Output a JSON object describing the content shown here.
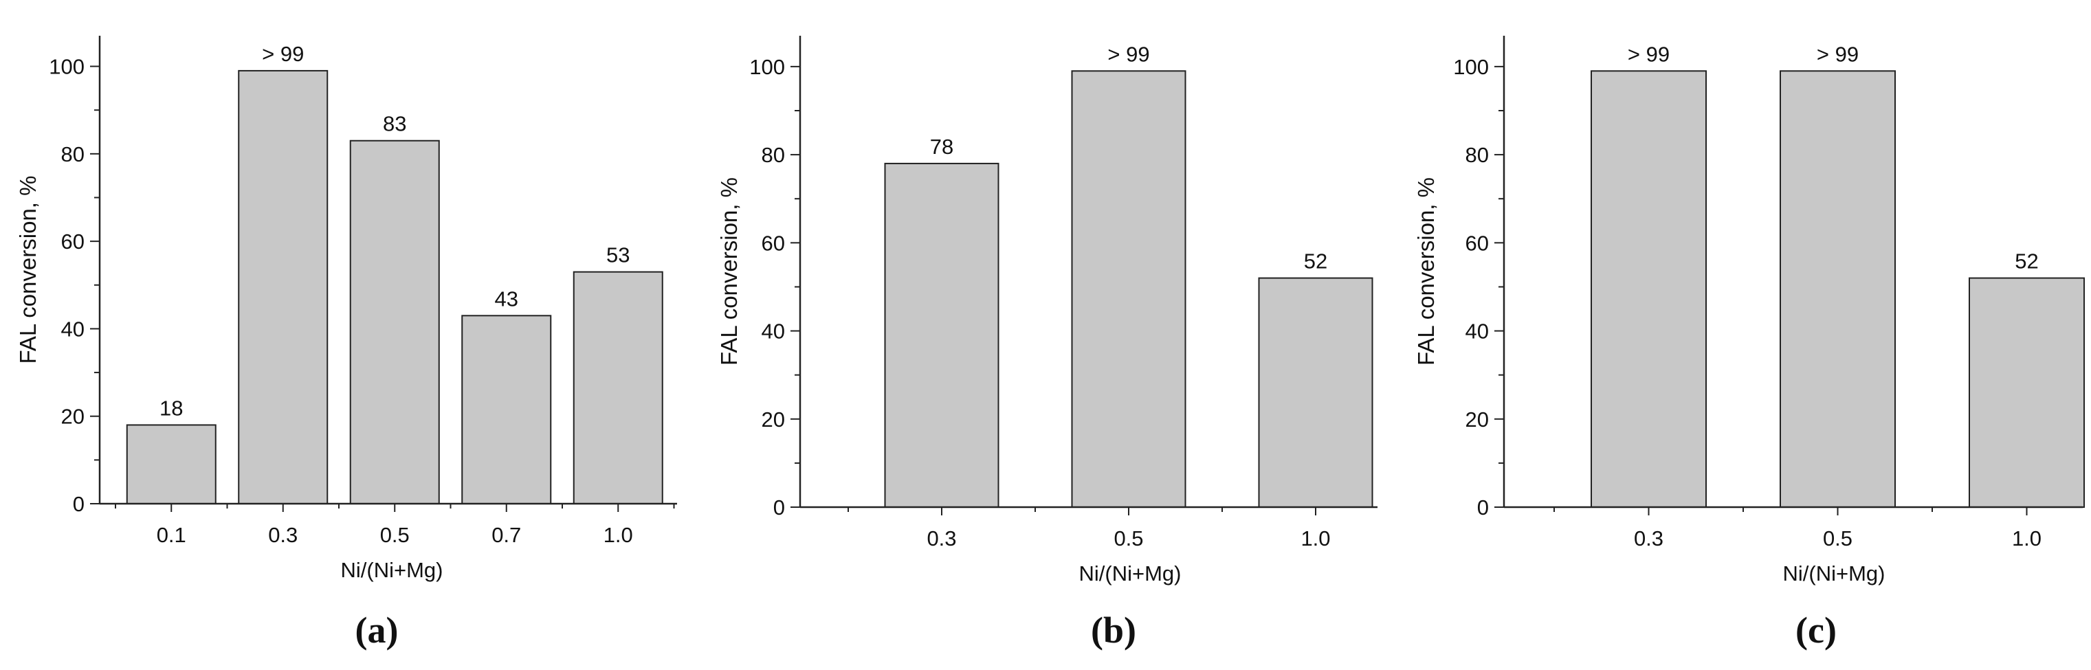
{
  "chart_data": [
    {
      "type": "bar",
      "panel_label": "(a)",
      "categories": [
        "0.1",
        "0.3",
        "0.5",
        "0.7",
        "1.0"
      ],
      "values": [
        18,
        99,
        83,
        43,
        53
      ],
      "data_labels": [
        "18",
        "> 99",
        "83",
        "43",
        "53"
      ],
      "xlabel": "Ni/(Ni+Mg)",
      "ylabel": "FAL conversion, %",
      "ylim": [
        0,
        107
      ],
      "yticks": [
        0,
        20,
        40,
        60,
        80,
        100
      ],
      "grid": false,
      "bar_color": "#c8c8c8"
    },
    {
      "type": "bar",
      "panel_label": "(b)",
      "categories": [
        "0.3",
        "0.5",
        "1.0"
      ],
      "values": [
        78,
        99,
        52
      ],
      "data_labels": [
        "78",
        "> 99",
        "52"
      ],
      "xlabel": "Ni/(Ni+Mg)",
      "ylabel": "FAL conversion, %",
      "ylim": [
        0,
        107
      ],
      "yticks": [
        0,
        20,
        40,
        60,
        80,
        100
      ],
      "grid": false,
      "bar_color": "#c8c8c8"
    },
    {
      "type": "bar",
      "panel_label": "(c)",
      "categories": [
        "0.3",
        "0.5",
        "1.0"
      ],
      "values": [
        99,
        99,
        52
      ],
      "data_labels": [
        "> 99",
        "> 99",
        "52"
      ],
      "xlabel": "Ni/(Ni+Mg)",
      "ylabel": "FAL conversion, %",
      "ylim": [
        0,
        107
      ],
      "yticks": [
        0,
        20,
        40,
        60,
        80,
        100
      ],
      "grid": false,
      "bar_color": "#c8c8c8"
    }
  ]
}
